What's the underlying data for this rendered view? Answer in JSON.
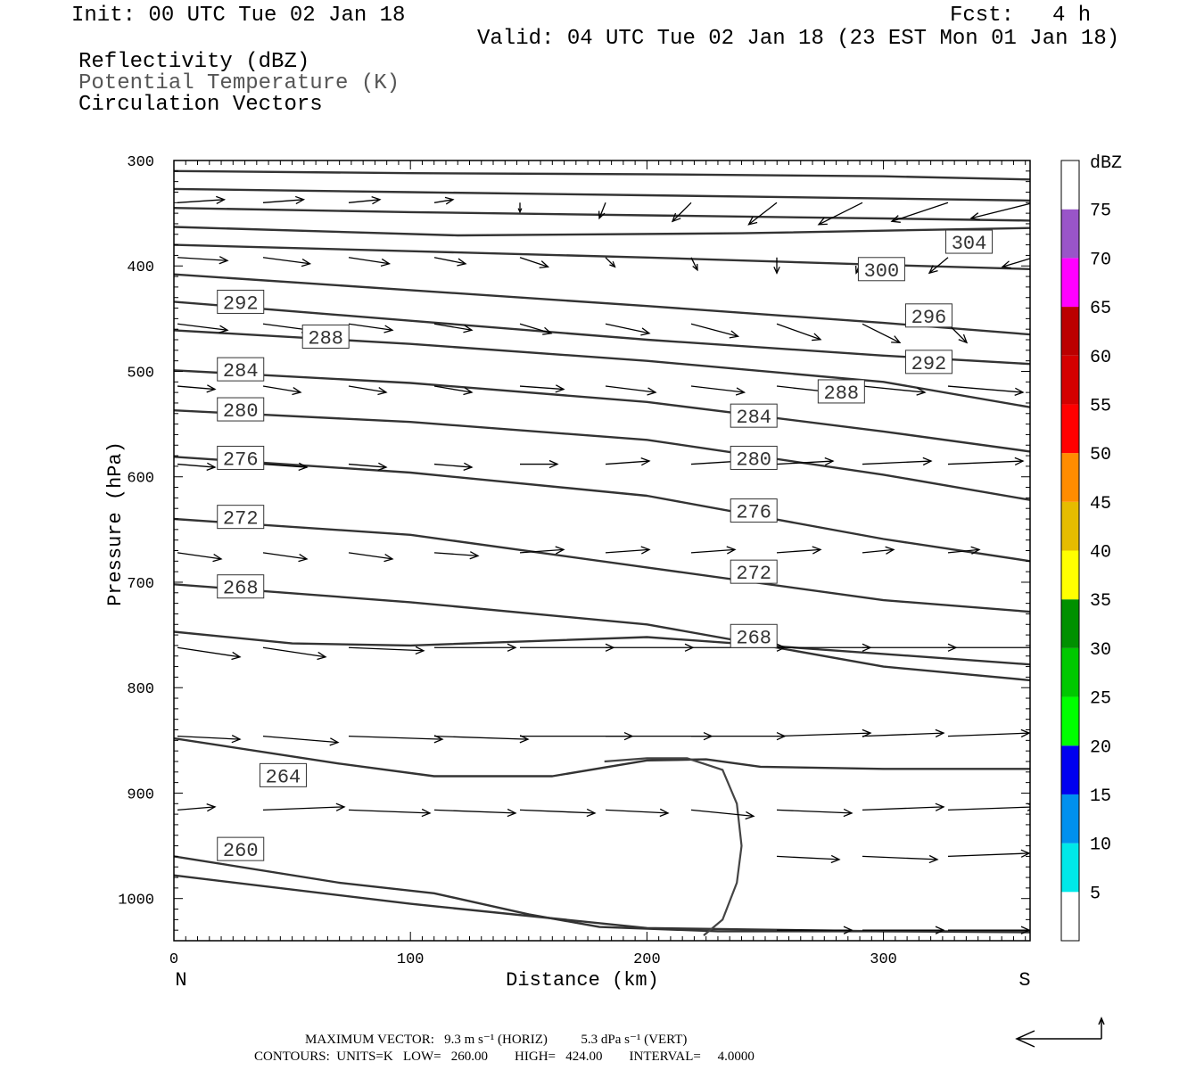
{
  "header": {
    "init": "Init: 00 UTC Tue 02 Jan 18",
    "fcst_label": "Fcst:",
    "fcst_value": "4 h",
    "valid": "Valid: 04 UTC Tue 02 Jan 18 (23 EST Mon 01 Jan 18)"
  },
  "legend": {
    "reflectivity": "Reflectivity (dBZ)",
    "theta": "Potential Temperature (K)",
    "vectors": "Circulation Vectors"
  },
  "chart_data": {
    "type": "cross-section",
    "xlabel": "Distance (km)",
    "ylabel": "Pressure (hPa)",
    "xlim": [
      0,
      362
    ],
    "ylim": [
      300,
      1040
    ],
    "y_inverted": true,
    "x_ticks": [
      0,
      100,
      200,
      300
    ],
    "x_tick_labels": [
      "0",
      "100",
      "200",
      "300"
    ],
    "y_ticks": [
      300,
      400,
      500,
      600,
      700,
      800,
      900,
      1000
    ],
    "y_tick_labels": [
      "300",
      "400",
      "500",
      "600",
      "700",
      "800",
      "900",
      "1000"
    ],
    "left_end_label": "N",
    "right_end_label": "S",
    "isentropes": [
      {
        "x": [
          0,
          100,
          200,
          300,
          362
        ],
        "y": [
          310,
          312,
          313,
          315,
          318
        ]
      },
      {
        "x": [
          0,
          100,
          200,
          300,
          362
        ],
        "y": [
          327,
          330,
          333,
          336,
          338
        ]
      },
      {
        "x": [
          0,
          100,
          200,
          300,
          362
        ],
        "y": [
          345,
          349,
          352,
          355,
          357
        ]
      },
      {
        "x": [
          0,
          120,
          240,
          362
        ],
        "y": [
          363,
          371,
          369,
          364
        ]
      },
      {
        "x": [
          0,
          100,
          200,
          300,
          362
        ],
        "y": [
          380,
          386,
          392,
          399,
          403
        ]
      },
      {
        "x": [
          0,
          100,
          200,
          300,
          362
        ],
        "y": [
          408,
          423,
          438,
          454,
          465
        ]
      },
      {
        "x": [
          0,
          100,
          200,
          300,
          362
        ],
        "y": [
          434,
          452,
          470,
          485,
          493
        ]
      },
      {
        "x": [
          0,
          100,
          200,
          300,
          362
        ],
        "y": [
          461,
          474,
          490,
          510,
          534
        ]
      },
      {
        "x": [
          0,
          100,
          200,
          300,
          362
        ],
        "y": [
          499,
          511,
          529,
          557,
          576
        ]
      },
      {
        "x": [
          0,
          100,
          200,
          300,
          362
        ],
        "y": [
          537,
          548,
          565,
          598,
          622
        ]
      },
      {
        "x": [
          0,
          100,
          200,
          300,
          362
        ],
        "y": [
          581,
          596,
          618,
          659,
          680
        ]
      },
      {
        "x": [
          0,
          100,
          200,
          300,
          362
        ],
        "y": [
          640,
          655,
          686,
          717,
          728
        ]
      },
      {
        "x": [
          0,
          100,
          200,
          300,
          362
        ],
        "y": [
          702,
          719,
          740,
          780,
          793
        ]
      },
      {
        "x": [
          0,
          50,
          100,
          200,
          300,
          362
        ],
        "y": [
          747,
          758,
          760,
          752,
          768,
          778
        ]
      },
      {
        "x": [
          0,
          70,
          110,
          160,
          200,
          225,
          248,
          300,
          362
        ],
        "y": [
          848,
          872,
          884,
          884,
          869,
          868,
          875,
          877,
          877
        ]
      },
      {
        "x": [
          0,
          70,
          110,
          150,
          180,
          230,
          300,
          362
        ],
        "y": [
          960,
          985,
          995,
          1015,
          1027,
          1031,
          1031,
          1032
        ]
      },
      {
        "x": [
          0,
          100,
          200,
          300,
          362
        ],
        "y": [
          978,
          1005,
          1028,
          1031,
          1031
        ]
      }
    ],
    "labels": [
      {
        "text": "304",
        "x": 326,
        "y": 377
      },
      {
        "text": "300",
        "x": 289,
        "y": 403
      },
      {
        "text": "296",
        "x": 309,
        "y": 447
      },
      {
        "text": "292",
        "x": 18,
        "y": 434
      },
      {
        "text": "292",
        "x": 309,
        "y": 491
      },
      {
        "text": "288",
        "x": 54,
        "y": 467
      },
      {
        "text": "288",
        "x": 272,
        "y": 519
      },
      {
        "text": "284",
        "x": 18,
        "y": 498
      },
      {
        "text": "284",
        "x": 235,
        "y": 542
      },
      {
        "text": "280",
        "x": 18,
        "y": 536
      },
      {
        "text": "280",
        "x": 235,
        "y": 582
      },
      {
        "text": "276",
        "x": 18,
        "y": 582
      },
      {
        "text": "276",
        "x": 235,
        "y": 632
      },
      {
        "text": "272",
        "x": 18,
        "y": 638
      },
      {
        "text": "272",
        "x": 235,
        "y": 690
      },
      {
        "text": "268",
        "x": 18,
        "y": 704
      },
      {
        "text": "268",
        "x": 235,
        "y": 751
      },
      {
        "text": "264",
        "x": 36,
        "y": 883
      },
      {
        "text": "260",
        "x": 18,
        "y": 953
      }
    ],
    "reflectivity_contour": {
      "x": [
        182,
        200,
        217,
        232,
        238,
        240,
        238,
        232,
        224
      ],
      "y": [
        870,
        867,
        867,
        878,
        910,
        950,
        985,
        1020,
        1035
      ]
    },
    "vector_rows": [
      {
        "p": 340,
        "u": [
          15,
          13,
          10,
          6,
          0,
          -2,
          -6,
          -9,
          -14,
          -18,
          -20,
          -22
        ],
        "w": [
          -1,
          -1,
          -1,
          -1,
          3,
          5,
          6,
          7,
          7,
          6,
          5,
          4
        ]
      },
      {
        "p": 392,
        "u": [
          16,
          15,
          13,
          10,
          9,
          3,
          2,
          0,
          -2,
          -6,
          -10
        ],
        "w": [
          1,
          2,
          2,
          2,
          3,
          3,
          4,
          5,
          5,
          5,
          3
        ]
      },
      {
        "p": 455,
        "u": [
          16,
          15,
          14,
          12,
          10,
          14,
          15,
          14,
          12,
          6
        ],
        "w": [
          2,
          2,
          2,
          2,
          3,
          3,
          4,
          5,
          6,
          6
        ]
      },
      {
        "p": 514,
        "u": [
          12,
          12,
          12,
          12,
          14,
          16,
          17,
          18,
          20,
          24
        ],
        "w": [
          1,
          2,
          2,
          2,
          1,
          2,
          2,
          2,
          2,
          2
        ]
      },
      {
        "p": 588,
        "u": [
          12,
          14,
          12,
          12,
          12,
          14,
          16,
          18,
          22,
          24,
          26
        ],
        "w": [
          1,
          1,
          1,
          1,
          0,
          -1,
          -1,
          -1,
          -1,
          -1,
          -1
        ]
      },
      {
        "p": 672,
        "u": [
          14,
          14,
          14,
          14,
          14,
          14,
          14,
          14,
          10,
          10,
          10
        ],
        "w": [
          2,
          2,
          2,
          1,
          -1,
          -1,
          -1,
          -1,
          -1,
          -1,
          -1
        ]
      },
      {
        "p": 762,
        "u": [
          20,
          20,
          24,
          26,
          30,
          28,
          30,
          30,
          30,
          30,
          30
        ],
        "w": [
          3,
          3,
          1,
          0,
          0,
          0,
          0,
          0,
          0,
          0,
          0
        ]
      },
      {
        "p": 846,
        "u": [
          20,
          24,
          30,
          30,
          36,
          34,
          30,
          30,
          26,
          26,
          30
        ],
        "w": [
          1,
          2,
          1,
          1,
          0,
          0,
          0,
          -1,
          -1,
          -1,
          -1
        ]
      },
      {
        "p": 916,
        "u": [
          12,
          26,
          26,
          26,
          24,
          20,
          20,
          24,
          26,
          28,
          28
        ],
        "w": [
          -1,
          -1,
          1,
          1,
          1,
          1,
          2,
          1,
          -1,
          -1,
          -1
        ]
      },
      {
        "p": 960,
        "u": [
          0,
          0,
          0,
          0,
          0,
          0,
          0,
          20,
          24,
          26,
          28
        ],
        "w": [
          0,
          0,
          0,
          0,
          0,
          0,
          0,
          1,
          1,
          -1,
          -1
        ]
      },
      {
        "p": 1030,
        "u": [
          0,
          0,
          0,
          0,
          0,
          0,
          0,
          24,
          26,
          26,
          28
        ],
        "w": [
          0,
          0,
          0,
          0,
          0,
          0,
          0,
          0,
          0,
          0,
          0
        ]
      }
    ],
    "colorbar": {
      "title": "dBZ",
      "levels": [
        "5",
        "10",
        "15",
        "20",
        "25",
        "30",
        "35",
        "40",
        "45",
        "50",
        "55",
        "60",
        "65",
        "70",
        "75"
      ],
      "colors": [
        "#ffffff",
        "#00e8e8",
        "#0090ee",
        "#0000f0",
        "#00ff00",
        "#00c800",
        "#009000",
        "#ffff00",
        "#e6bc00",
        "#ff8c00",
        "#ff0000",
        "#d40000",
        "#bb0000",
        "#ff00ff",
        "#9955c8",
        "#ffffff"
      ]
    }
  },
  "footer": {
    "max_vector": "MAXIMUM VECTOR:   9.3 m s⁻¹ (HORIZ)          5.3 dPa s⁻¹ (VERT)",
    "contours": "CONTOURS:  UNITS=K   LOW=   260.00        HIGH=   424.00        INTERVAL=     4.0000"
  }
}
